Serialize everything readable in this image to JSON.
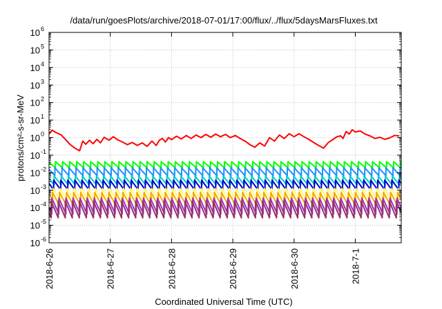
{
  "chart_data": {
    "type": "line",
    "title": "/data/run/goesPlots/archive/2018-07-01/17:00/flux/../flux/5daysMarsFluxes.txt",
    "xlabel": "Coordinated Universal Time (UTC)",
    "ylabel": "protons/cm²-s-sr-MeV",
    "yscale": "log",
    "ylim": [
      1e-06,
      1000000.0
    ],
    "xlim": [
      0,
      5.75
    ],
    "x_units": "days after 2018-6-26 00:00 UTC",
    "grid": true,
    "y_ticks": [
      {
        "base": "10",
        "exp": "-6",
        "value": -6
      },
      {
        "base": "10",
        "exp": "-5",
        "value": -5
      },
      {
        "base": "10",
        "exp": "-4",
        "value": -4
      },
      {
        "base": "10",
        "exp": "-3",
        "value": -3
      },
      {
        "base": "10",
        "exp": "-2",
        "value": -2
      },
      {
        "base": "10",
        "exp": "-1",
        "value": -1
      },
      {
        "base": "10",
        "exp": "0",
        "value": 0
      },
      {
        "base": "10",
        "exp": "1",
        "value": 1
      },
      {
        "base": "10",
        "exp": "2",
        "value": 2
      },
      {
        "base": "10",
        "exp": "3",
        "value": 3
      },
      {
        "base": "10",
        "exp": "4",
        "value": 4
      },
      {
        "base": "10",
        "exp": "5",
        "value": 5
      },
      {
        "base": "10",
        "exp": "6",
        "value": 6
      }
    ],
    "x_ticks": [
      {
        "label": "2018-6-26",
        "value": 0
      },
      {
        "label": "2018-6-27",
        "value": 1
      },
      {
        "label": "2018-6-28",
        "value": 2
      },
      {
        "label": "2018-6-29",
        "value": 3
      },
      {
        "label": "2018-6-30",
        "value": 4
      },
      {
        "label": "2018-7-1",
        "value": 5
      }
    ],
    "series": [
      {
        "color": "#ff0000",
        "x": [
          0.0,
          0.05,
          0.12,
          0.2,
          0.28,
          0.34,
          0.42,
          0.5,
          0.55,
          0.6,
          0.66,
          0.72,
          0.78,
          0.84,
          0.9,
          0.98,
          1.05,
          1.12,
          1.2,
          1.28,
          1.36,
          1.44,
          1.52,
          1.6,
          1.68,
          1.75,
          1.8,
          1.85,
          1.9,
          1.95,
          2.0,
          2.08,
          2.16,
          2.24,
          2.32,
          2.4,
          2.48,
          2.56,
          2.64,
          2.72,
          2.8,
          2.88,
          2.96,
          3.04,
          3.12,
          3.2,
          3.28,
          3.36,
          3.44,
          3.52,
          3.6,
          3.68,
          3.76,
          3.84,
          3.92,
          4.0,
          4.08,
          4.16,
          4.24,
          4.32,
          4.4,
          4.48,
          4.56,
          4.64,
          4.7,
          4.76,
          4.8,
          4.85,
          4.9,
          4.95,
          5.0,
          5.08,
          5.16,
          5.24,
          5.32,
          5.4,
          5.48,
          5.56,
          5.64,
          5.72
        ],
        "log10_y": [
          0.2,
          0.42,
          0.28,
          0.15,
          -0.15,
          -0.38,
          -0.6,
          -0.75,
          -0.2,
          -0.38,
          -0.15,
          -0.35,
          -0.1,
          -0.3,
          0.02,
          -0.15,
          0.05,
          -0.12,
          -0.25,
          -0.4,
          -0.28,
          -0.45,
          -0.3,
          -0.5,
          -0.2,
          -0.45,
          -0.15,
          -0.05,
          -0.25,
          0.0,
          -0.12,
          0.08,
          -0.08,
          0.12,
          -0.05,
          0.15,
          0.0,
          0.18,
          0.02,
          0.2,
          0.05,
          0.18,
          0.0,
          0.12,
          -0.05,
          -0.2,
          -0.4,
          -0.55,
          -0.3,
          -0.48,
          0.0,
          -0.2,
          0.15,
          -0.05,
          0.22,
          0.05,
          0.22,
          0.05,
          -0.1,
          -0.28,
          -0.45,
          -0.6,
          -0.28,
          -0.1,
          0.05,
          0.1,
          -0.05,
          0.35,
          0.2,
          0.45,
          0.32,
          0.38,
          0.2,
          0.1,
          -0.05,
          0.02,
          -0.1,
          -0.02,
          0.12,
          0.1
        ]
      },
      {
        "color": "#00ff00",
        "baseline": -1.55,
        "amplitude": 0.35
      },
      {
        "color": "#1e90ff",
        "baseline": -1.95,
        "amplitude": 0.45
      },
      {
        "color": "#00cccc",
        "baseline": -2.45,
        "amplitude": 0.5
      },
      {
        "color": "#0000cd",
        "baseline": -2.7,
        "amplitude": 0.55
      },
      {
        "color": "#ffff66",
        "baseline": -3.25,
        "amplitude": 0.7
      },
      {
        "color": "#ffa500",
        "baseline": -3.5,
        "amplitude": 0.75
      },
      {
        "color": "#9932cc",
        "baseline": -3.9,
        "amplitude": 0.9
      },
      {
        "color": "#993366",
        "baseline": -4.1,
        "amplitude": 0.95
      }
    ]
  }
}
